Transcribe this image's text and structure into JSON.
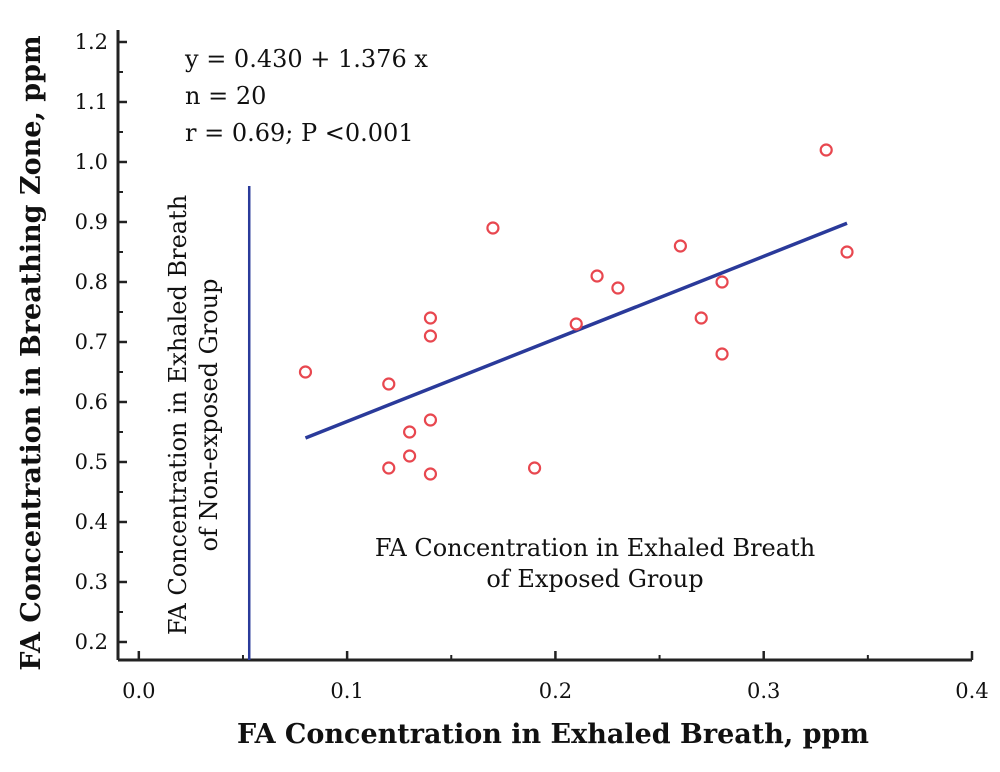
{
  "chart_data": {
    "type": "scatter",
    "title": "",
    "xlabel": "FA Concentration in Exhaled Breath, ppm",
    "ylabel": "FA Concentration in Breathing Zone, ppm",
    "xlim": [
      -0.01,
      0.4
    ],
    "ylim": [
      0.17,
      1.22
    ],
    "x_ticks": [
      "0.0",
      "0.1",
      "0.2",
      "0.3",
      "0.4"
    ],
    "y_ticks": [
      "0.2",
      "0.3",
      "0.4",
      "0.5",
      "0.6",
      "0.7",
      "0.8",
      "0.9",
      "1.0",
      "1.1",
      "1.2"
    ],
    "points": [
      {
        "x": 0.08,
        "y": 0.65
      },
      {
        "x": 0.12,
        "y": 0.63
      },
      {
        "x": 0.12,
        "y": 0.49
      },
      {
        "x": 0.13,
        "y": 0.55
      },
      {
        "x": 0.13,
        "y": 0.51
      },
      {
        "x": 0.14,
        "y": 0.74
      },
      {
        "x": 0.14,
        "y": 0.71
      },
      {
        "x": 0.14,
        "y": 0.57
      },
      {
        "x": 0.14,
        "y": 0.48
      },
      {
        "x": 0.17,
        "y": 0.89
      },
      {
        "x": 0.19,
        "y": 0.49
      },
      {
        "x": 0.21,
        "y": 0.73
      },
      {
        "x": 0.22,
        "y": 0.81
      },
      {
        "x": 0.23,
        "y": 0.79
      },
      {
        "x": 0.26,
        "y": 0.86
      },
      {
        "x": 0.27,
        "y": 0.74
      },
      {
        "x": 0.28,
        "y": 0.8
      },
      {
        "x": 0.28,
        "y": 0.68
      },
      {
        "x": 0.33,
        "y": 1.02
      },
      {
        "x": 0.34,
        "y": 0.85
      }
    ],
    "regression": {
      "intercept": 0.43,
      "slope": 1.376,
      "x_range": [
        0.08,
        0.34
      ]
    },
    "reference_line_x": 0.053,
    "annotations": {
      "equation": "y = 0.430 + 1.376 x",
      "n": "n = 20",
      "r": "r = 0.69; P <0.001"
    },
    "region_labels": {
      "non_exposed_line1": "FA Concentration in Exhaled Breath",
      "non_exposed_line2": "of Non-exposed Group",
      "exposed_line1": "FA Concentration in Exhaled Breath",
      "exposed_line2": "of Exposed Group"
    },
    "colors": {
      "points": "#e8474f",
      "regression_line": "#2a3a9a",
      "reference_line": "#2a3a9a",
      "axes": "#222222"
    },
    "grid": false
  }
}
